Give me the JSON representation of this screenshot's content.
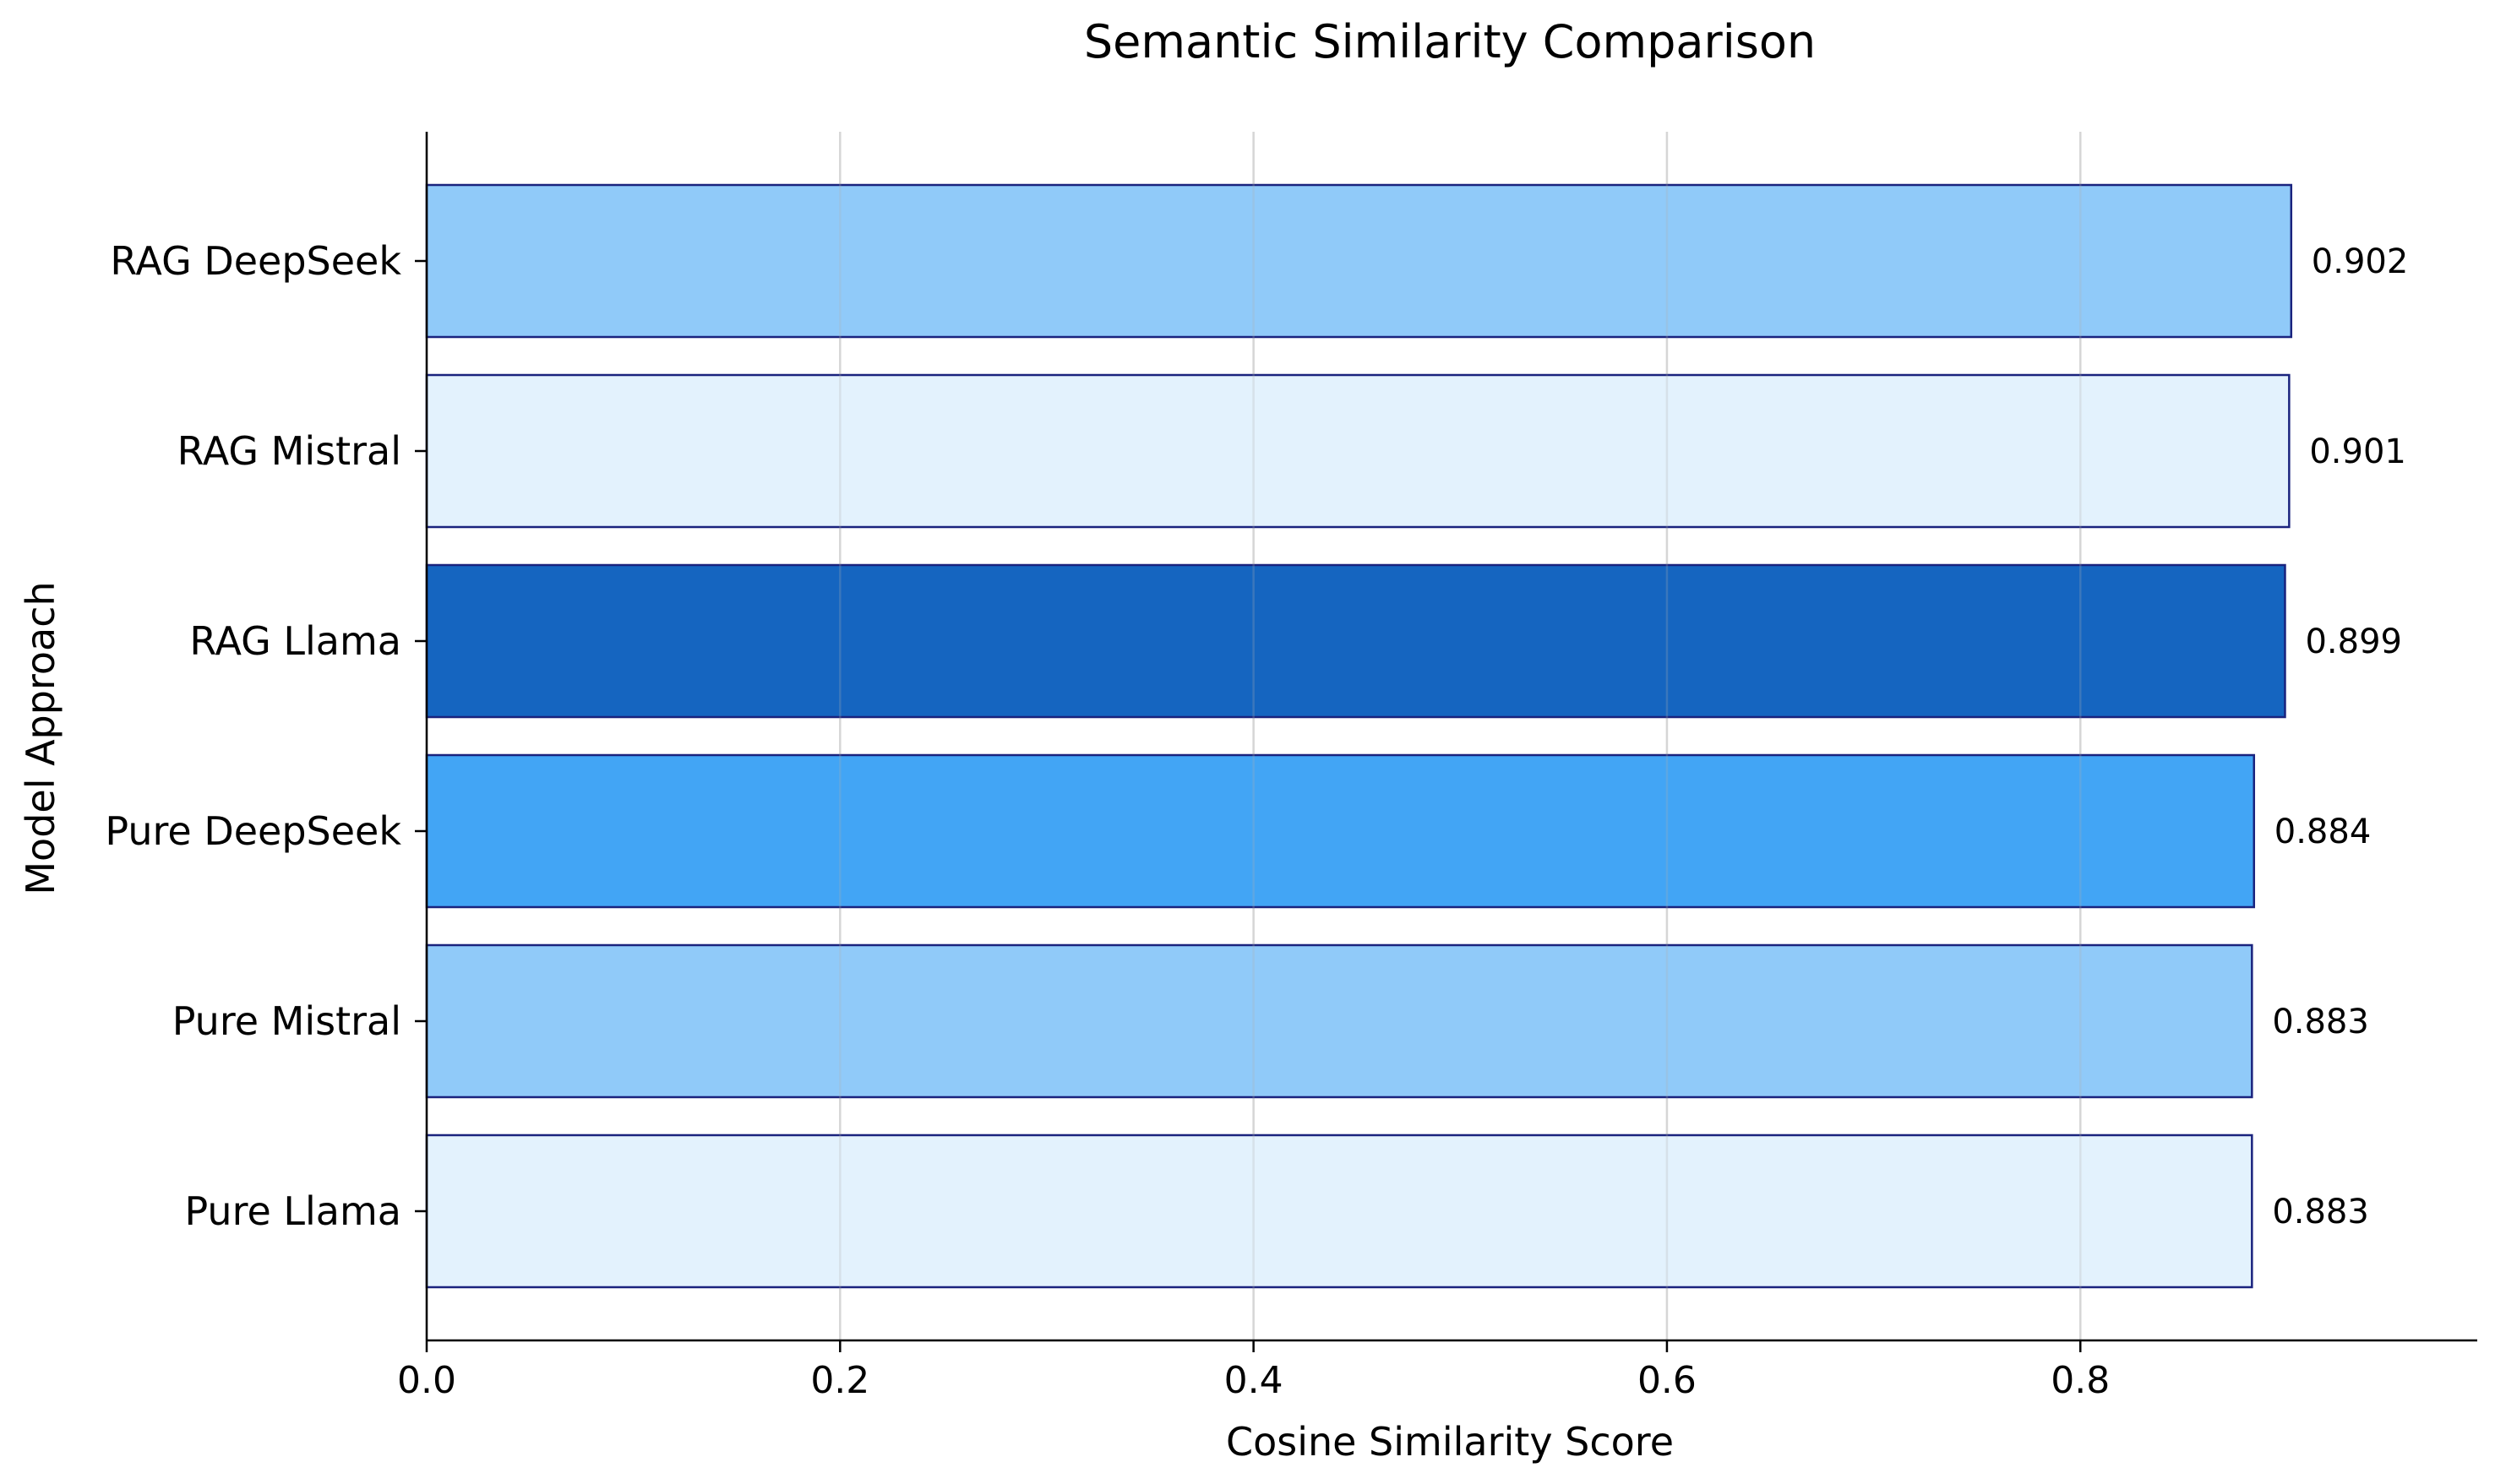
{
  "chart_data": {
    "type": "bar",
    "orientation": "horizontal",
    "title": "Semantic Similarity Comparison",
    "xlabel": "Cosine Similarity Score",
    "ylabel": "Model Approach",
    "categories": [
      "Pure Llama",
      "Pure Mistral",
      "Pure DeepSeek",
      "RAG Llama",
      "RAG Mistral",
      "RAG DeepSeek"
    ],
    "values": [
      0.883,
      0.883,
      0.884,
      0.899,
      0.901,
      0.902
    ],
    "value_labels": [
      "0.883",
      "0.883",
      "0.884",
      "0.899",
      "0.901",
      "0.902"
    ],
    "bar_colors": [
      "#E3F2FD",
      "#90CAF9",
      "#42A5F5",
      "#1565C0",
      "#E3F2FD",
      "#90CAF9"
    ],
    "edge_color": "#1A237E",
    "xlim": [
      0,
      0.992
    ],
    "x_ticks": [
      0.0,
      0.2,
      0.4,
      0.6,
      0.8
    ],
    "x_tick_labels": [
      "0.0",
      "0.2",
      "0.4",
      "0.6",
      "0.8"
    ],
    "grid": "vertical",
    "legend": "none"
  }
}
